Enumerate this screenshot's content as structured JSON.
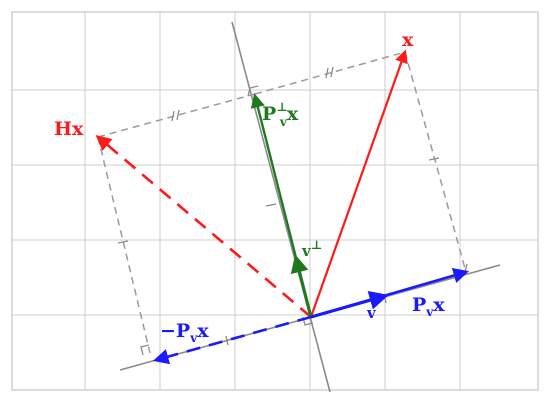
{
  "labels": {
    "x": "x",
    "hx": "Hx",
    "v": "v",
    "v_perp_base": "v",
    "v_perp_sup": "⊥",
    "proj_perp_base": "P",
    "proj_perp_sup": "⊥",
    "proj_perp_sub": "v",
    "proj_perp_tail": "x",
    "proj_base": "P",
    "proj_sub": "v",
    "proj_tail": "x",
    "neg_proj_minus": "−",
    "neg_proj_base": "P",
    "neg_proj_sub": "v",
    "neg_proj_tail": "x"
  },
  "colors": {
    "red": "#ff1a1a",
    "green": "#1f7a1f",
    "blue": "#1a1aff",
    "grid": "#cccccc",
    "dashed": "#9a9a9a",
    "line": "#888888"
  }
}
